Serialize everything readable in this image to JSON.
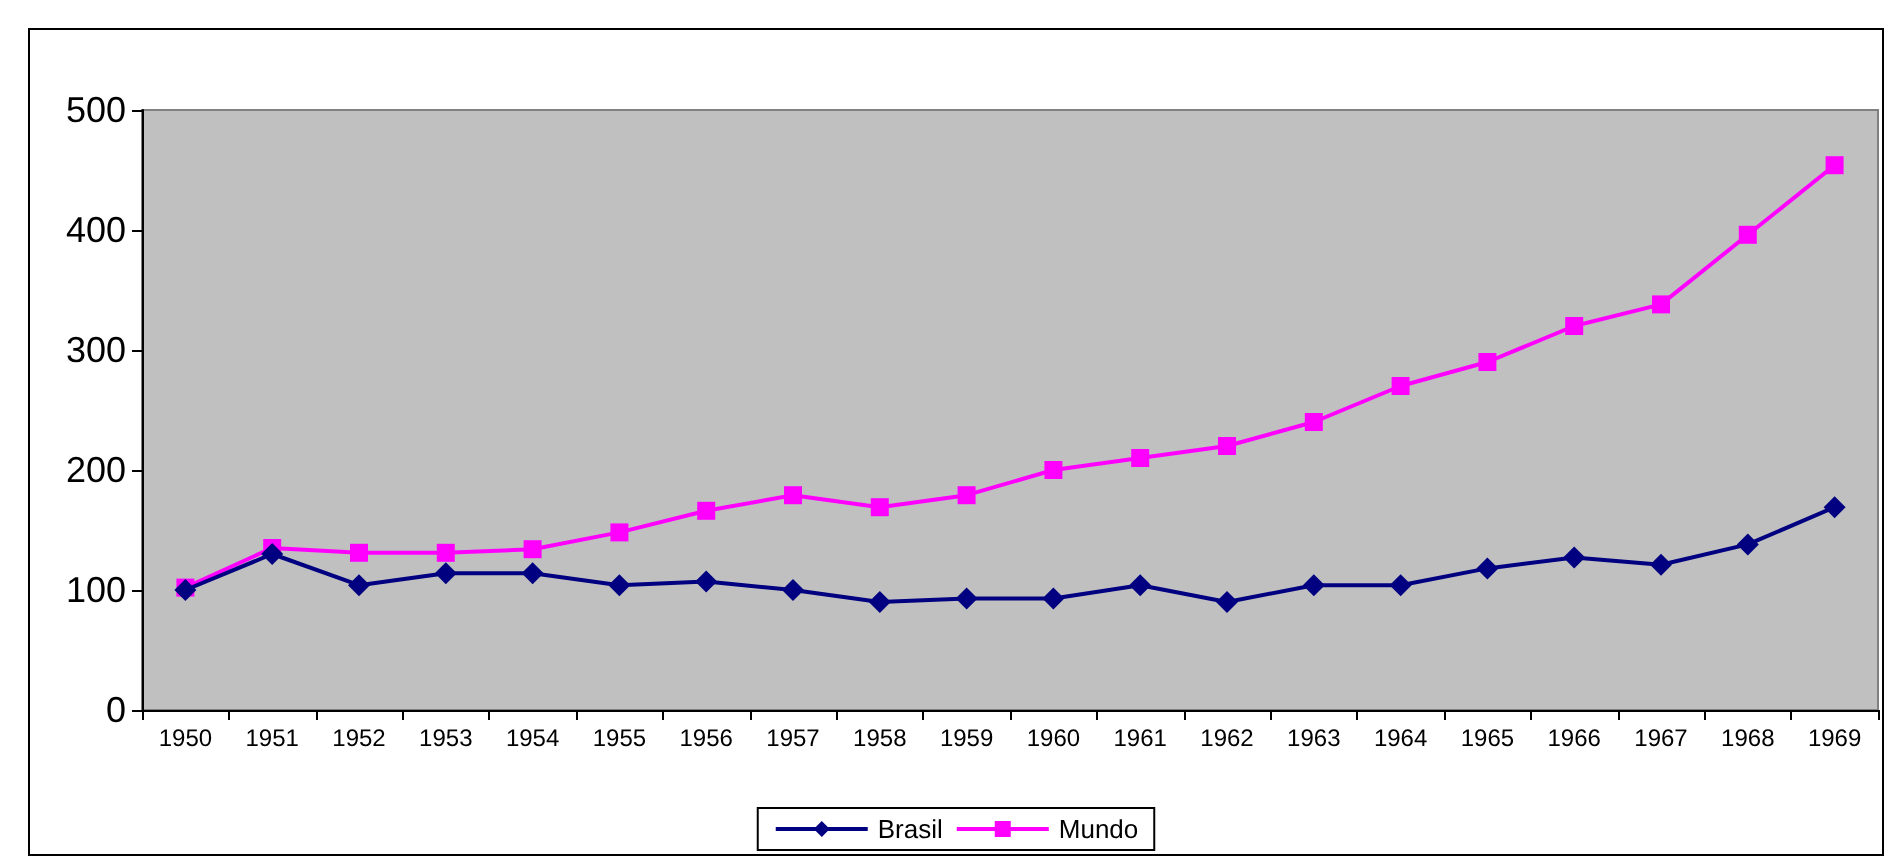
{
  "chart_data": {
    "type": "line",
    "categories": [
      "1950",
      "1951",
      "1952",
      "1953",
      "1954",
      "1955",
      "1956",
      "1957",
      "1958",
      "1959",
      "1960",
      "1961",
      "1962",
      "1963",
      "1964",
      "1965",
      "1966",
      "1967",
      "1968",
      "1969"
    ],
    "series": [
      {
        "name": "Brasil",
        "color": "#000080",
        "marker": "diamond",
        "values": [
          100,
          130,
          104,
          114,
          114,
          104,
          107,
          100,
          90,
          93,
          93,
          104,
          90,
          104,
          104,
          118,
          127,
          121,
          138,
          169
        ]
      },
      {
        "name": "Mundo",
        "color": "#ff00ff",
        "marker": "square",
        "values": [
          102,
          135,
          131,
          131,
          134,
          148,
          166,
          179,
          169,
          179,
          200,
          210,
          220,
          240,
          270,
          290,
          320,
          338,
          396,
          454
        ]
      }
    ],
    "ylim": [
      0,
      500
    ],
    "yticks": [
      0,
      100,
      200,
      300,
      400,
      500
    ],
    "grid": false,
    "legend": "bottom",
    "line_style": "solid"
  }
}
